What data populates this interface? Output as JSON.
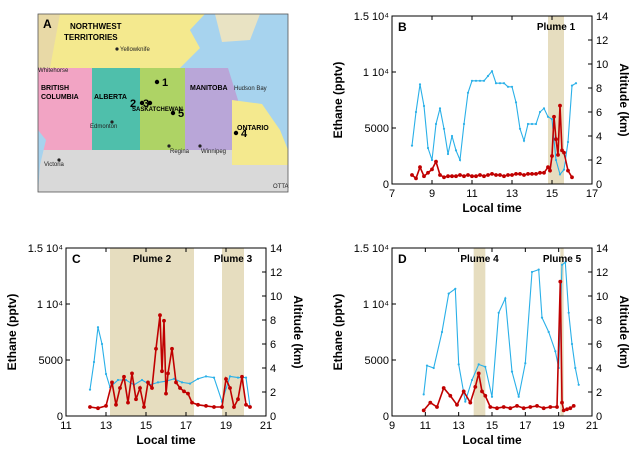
{
  "colors": {
    "ethane": "#c00000",
    "altitude": "#2ab0e8",
    "plume_shade": "#e6ddbf",
    "map_water": "#a7d3ee"
  },
  "map": {
    "panel_label": "A",
    "regions": [
      "NORTHWEST",
      "TERRITORIES",
      "BRITISH",
      "COLUMBIA",
      "ALBERTA",
      "SASKATCHEWAN",
      "MANITOBA",
      "ONTARIO"
    ],
    "cities": [
      "Yellowknife",
      "Edmonton",
      "Regina",
      "Winnipeg",
      "Victoria",
      "Whitehorse",
      "OTTA"
    ],
    "water": [
      "Hudson Bay"
    ],
    "sites": [
      "1",
      "2",
      "3",
      "5",
      "4"
    ]
  },
  "chart_data": [
    {
      "type": "line",
      "panel": "B",
      "xlabel": "Local time",
      "ylabel": "Ethane (pptv)",
      "y2label": "Altitude (km)",
      "xlim": [
        7,
        17
      ],
      "xticks": [
        "7",
        "9",
        "11",
        "13",
        "15",
        "17"
      ],
      "ylim": [
        0,
        15000
      ],
      "yticks": [
        "0",
        "5000",
        "1 10⁴",
        "1.5 10⁴"
      ],
      "y2lim": [
        0,
        14
      ],
      "y2ticks": [
        "0",
        "2",
        "4",
        "6",
        "8",
        "10",
        "12",
        "14"
      ],
      "plumes": [
        {
          "label": "Plume 1",
          "x0": 14.8,
          "x1": 15.6
        }
      ],
      "series": [
        {
          "axis": "right",
          "x": [
            8.0,
            8.2,
            8.4,
            8.6,
            8.8,
            9.0,
            9.2,
            9.4,
            9.6,
            9.8,
            10.0,
            10.2,
            10.4,
            10.6,
            10.8,
            11.0,
            11.2,
            11.4,
            11.6,
            11.8,
            12.0,
            12.2,
            12.4,
            12.6,
            12.8,
            13.0,
            13.2,
            13.4,
            13.6,
            13.8,
            14.0,
            14.2,
            14.4,
            14.6,
            14.8,
            15.0,
            15.2,
            15.4,
            15.6,
            15.8,
            16.0,
            16.2
          ],
          "y": [
            3.2,
            6.0,
            8.3,
            6.5,
            3.0,
            2.0,
            5.0,
            6.3,
            4.6,
            2.5,
            4.0,
            2.8,
            2.0,
            5.0,
            7.6,
            8.6,
            8.6,
            8.6,
            8.6,
            9.0,
            9.4,
            8.4,
            8.4,
            8.4,
            8.1,
            8.1,
            6.8,
            4.6,
            3.6,
            5.0,
            5.0,
            5.0,
            6.0,
            6.3,
            5.6,
            5.4,
            2.0,
            0.8,
            1.2,
            3.5,
            8.2,
            8.4
          ]
        },
        {
          "axis": "left",
          "x": [
            8.0,
            8.2,
            8.4,
            8.6,
            8.8,
            9.0,
            9.2,
            9.4,
            9.6,
            9.8,
            10.0,
            10.2,
            10.4,
            10.6,
            10.8,
            11.0,
            11.2,
            11.4,
            11.6,
            11.8,
            12.0,
            12.2,
            12.4,
            12.6,
            12.8,
            13.0,
            13.2,
            13.4,
            13.6,
            13.8,
            14.0,
            14.2,
            14.4,
            14.6,
            14.8,
            14.9,
            15.0,
            15.1,
            15.2,
            15.3,
            15.4,
            15.5,
            15.6,
            15.8,
            16.0
          ],
          "y": [
            800,
            500,
            1500,
            700,
            1000,
            1300,
            2000,
            800,
            600,
            700,
            700,
            700,
            800,
            700,
            800,
            700,
            700,
            800,
            700,
            800,
            900,
            800,
            800,
            700,
            800,
            800,
            900,
            900,
            800,
            900,
            900,
            900,
            1000,
            1000,
            1500,
            1200,
            2500,
            6000,
            4000,
            2600,
            7000,
            3000,
            2800,
            1200,
            600
          ]
        }
      ]
    },
    {
      "type": "line",
      "panel": "C",
      "xlabel": "Local time",
      "ylabel": "Ethane (pptv)",
      "y2label": "Altitude (km)",
      "xlim": [
        11,
        21
      ],
      "xticks": [
        "11",
        "13",
        "15",
        "17",
        "19",
        "21"
      ],
      "ylim": [
        0,
        15000
      ],
      "yticks": [
        "0",
        "5000",
        "1 10⁴",
        "1.5 10⁴"
      ],
      "y2lim": [
        0,
        14
      ],
      "y2ticks": [
        "0",
        "2",
        "4",
        "6",
        "8",
        "10",
        "12",
        "14"
      ],
      "plumes": [
        {
          "label": "Plume 2",
          "x0": 13.2,
          "x1": 17.4
        },
        {
          "label": "Plume 3",
          "x0": 18.8,
          "x1": 19.9
        }
      ],
      "series": [
        {
          "axis": "right",
          "x": [
            12.2,
            12.4,
            12.6,
            12.8,
            13.0,
            13.2,
            13.6,
            14.0,
            14.4,
            14.8,
            15.2,
            15.6,
            16.0,
            16.4,
            16.8,
            17.2,
            17.6,
            18.0,
            18.4,
            18.8,
            19.2,
            19.6,
            20.0,
            20.2
          ],
          "y": [
            2.2,
            4.5,
            7.4,
            6.0,
            3.5,
            2.4,
            3.0,
            3.0,
            2.6,
            3.0,
            2.6,
            2.8,
            2.9,
            3.1,
            2.8,
            2.7,
            3.1,
            3.3,
            3.2,
            1.2,
            3.3,
            3.2,
            3.2,
            0.8
          ]
        },
        {
          "axis": "left",
          "x": [
            12.2,
            12.6,
            13.0,
            13.3,
            13.5,
            13.7,
            13.9,
            14.1,
            14.3,
            14.5,
            14.7,
            14.9,
            15.1,
            15.3,
            15.5,
            15.7,
            15.8,
            15.9,
            16.0,
            16.1,
            16.3,
            16.5,
            16.7,
            16.9,
            17.1,
            17.3,
            17.6,
            18.0,
            18.4,
            18.8,
            19.0,
            19.2,
            19.4,
            19.6,
            19.8,
            20.0,
            20.2
          ],
          "y": [
            800,
            700,
            900,
            3000,
            1000,
            2500,
            3500,
            1200,
            3800,
            1500,
            2500,
            800,
            3000,
            2500,
            6000,
            9000,
            4000,
            8500,
            2000,
            3800,
            6000,
            3000,
            2500,
            2200,
            2000,
            1200,
            1000,
            900,
            800,
            800,
            3300,
            2500,
            800,
            1500,
            3500,
            1000,
            800
          ]
        }
      ]
    },
    {
      "type": "line",
      "panel": "D",
      "xlabel": "Local time",
      "ylabel": "Ethane (pptv)",
      "y2label": "Altitude (km)",
      "xlim": [
        9,
        21
      ],
      "xticks": [
        "9",
        "11",
        "13",
        "15",
        "17",
        "19",
        "21"
      ],
      "ylim": [
        0,
        15000
      ],
      "yticks": [
        "0",
        "5000",
        "1 10⁴",
        "1.5 10⁴"
      ],
      "y2lim": [
        0,
        14
      ],
      "y2ticks": [
        "0",
        "2",
        "4",
        "6",
        "8",
        "10",
        "12",
        "14"
      ],
      "plumes": [
        {
          "label": "Plume 4",
          "x0": 13.9,
          "x1": 14.6
        },
        {
          "label": "Plume 5",
          "x0": 19.1,
          "x1": 19.3
        }
      ],
      "series": [
        {
          "axis": "right",
          "x": [
            10.9,
            11.1,
            11.5,
            12.0,
            12.4,
            12.8,
            13.0,
            13.4,
            13.8,
            14.2,
            14.6,
            15.0,
            15.4,
            15.8,
            16.2,
            16.6,
            17.0,
            17.4,
            17.8,
            18.0,
            18.4,
            18.8,
            19.0,
            19.2,
            19.4,
            19.6,
            19.8,
            20.0,
            20.2
          ],
          "y": [
            1.8,
            4.2,
            4.0,
            7.0,
            10.2,
            10.6,
            4.3,
            1.2,
            3.0,
            4.3,
            4.1,
            1.6,
            8.6,
            9.8,
            3.7,
            1.6,
            4.4,
            12.0,
            12.2,
            8.2,
            7.0,
            5.4,
            4.0,
            12.6,
            12.8,
            8.6,
            6.0,
            4.0,
            2.6
          ]
        },
        {
          "axis": "left",
          "x": [
            10.9,
            11.3,
            11.7,
            12.1,
            12.5,
            12.9,
            13.3,
            13.7,
            14.0,
            14.2,
            14.4,
            14.6,
            14.9,
            15.3,
            15.7,
            16.1,
            16.5,
            16.9,
            17.3,
            17.7,
            18.1,
            18.5,
            18.9,
            19.1,
            19.2,
            19.3,
            19.5,
            19.7,
            19.9
          ],
          "y": [
            500,
            1200,
            800,
            2500,
            1800,
            1000,
            2200,
            1200,
            2600,
            3800,
            2200,
            1800,
            800,
            700,
            800,
            700,
            900,
            700,
            800,
            900,
            700,
            800,
            800,
            12000,
            1200,
            500,
            600,
            700,
            900
          ]
        }
      ]
    }
  ]
}
